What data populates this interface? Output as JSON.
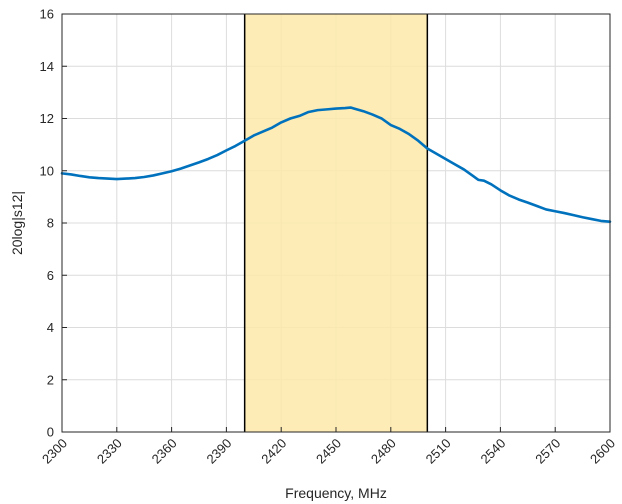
{
  "chart_data": {
    "type": "line",
    "xlabel": "Frequency, MHz",
    "ylabel": "20log|s12|",
    "xlim": [
      2300,
      2600
    ],
    "ylim": [
      0,
      16
    ],
    "x_ticks": [
      2300,
      2330,
      2360,
      2390,
      2420,
      2450,
      2480,
      2510,
      2540,
      2570,
      2600
    ],
    "y_ticks": [
      0,
      2,
      4,
      6,
      8,
      10,
      12,
      14,
      16
    ],
    "grid": true,
    "highlight_band": {
      "x_start": 2400,
      "x_end": 2500,
      "color": "#fde9a9",
      "edge_color": "#000000"
    },
    "series": [
      {
        "color": "#0072bd",
        "x": [
          2300,
          2305,
          2310,
          2315,
          2320,
          2325,
          2330,
          2335,
          2340,
          2345,
          2350,
          2355,
          2360,
          2365,
          2370,
          2375,
          2380,
          2385,
          2390,
          2395,
          2400,
          2405,
          2410,
          2415,
          2420,
          2425,
          2430,
          2435,
          2440,
          2445,
          2450,
          2455,
          2458,
          2460,
          2465,
          2470,
          2475,
          2480,
          2485,
          2490,
          2495,
          2500,
          2505,
          2510,
          2515,
          2520,
          2525,
          2528,
          2531,
          2535,
          2540,
          2545,
          2550,
          2555,
          2560,
          2565,
          2570,
          2575,
          2580,
          2585,
          2590,
          2595,
          2600
        ],
        "y": [
          9.9,
          9.86,
          9.8,
          9.75,
          9.72,
          9.7,
          9.68,
          9.7,
          9.72,
          9.76,
          9.82,
          9.9,
          9.98,
          10.08,
          10.2,
          10.32,
          10.45,
          10.6,
          10.78,
          10.95,
          11.15,
          11.35,
          11.5,
          11.65,
          11.85,
          12.0,
          12.1,
          12.25,
          12.32,
          12.35,
          12.38,
          12.4,
          12.42,
          12.38,
          12.28,
          12.15,
          12.0,
          11.75,
          11.6,
          11.4,
          11.15,
          10.85,
          10.65,
          10.45,
          10.25,
          10.05,
          9.8,
          9.65,
          9.62,
          9.48,
          9.25,
          9.05,
          8.9,
          8.78,
          8.65,
          8.52,
          8.45,
          8.38,
          8.3,
          8.22,
          8.15,
          8.08,
          8.05
        ]
      }
    ]
  }
}
